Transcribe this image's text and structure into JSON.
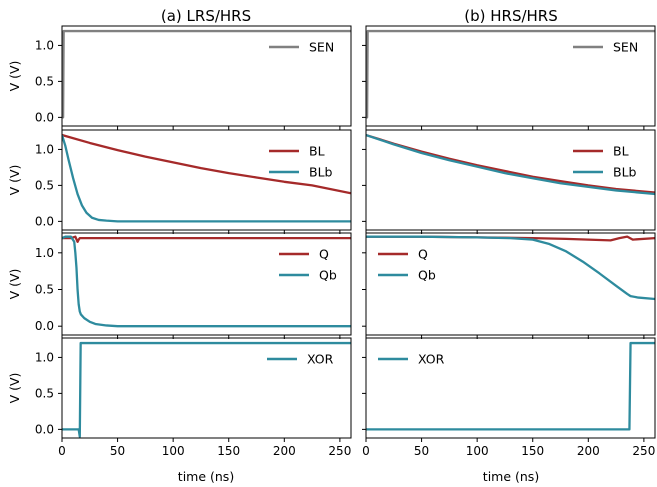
{
  "colors": {
    "sen": "#808080",
    "red": "#a52a2a",
    "teal": "#2e8b9e",
    "axis": "#000000"
  },
  "columns": [
    {
      "title": "(a) LRS/HRS",
      "xlabel": "time (ns)"
    },
    {
      "title": "(b) HRS/HRS",
      "xlabel": "time (ns)"
    }
  ],
  "ylabel": "V (V)",
  "xticks": [
    "0",
    "50",
    "100",
    "150",
    "200",
    "250"
  ],
  "yticks": [
    "0.0",
    "0.5",
    "1.0"
  ],
  "chart_data": {
    "type": "line",
    "xlim": [
      0,
      260
    ],
    "ylim": [
      -0.12,
      1.27
    ],
    "panels": [
      {
        "col": 0,
        "row": 0,
        "series": [
          {
            "name": "SEN",
            "color_key": "sen",
            "x": [
              0,
              1,
              1.5,
              260
            ],
            "y": [
              0,
              0,
              1.2,
              1.2
            ]
          }
        ]
      },
      {
        "col": 0,
        "row": 1,
        "series": [
          {
            "name": "BL",
            "color_key": "red",
            "x": [
              0,
              25,
              50,
              75,
              100,
              125,
              150,
              175,
              200,
              225,
              260
            ],
            "y": [
              1.2,
              1.09,
              0.99,
              0.9,
              0.82,
              0.74,
              0.67,
              0.61,
              0.55,
              0.5,
              0.39
            ]
          },
          {
            "name": "BLb",
            "color_key": "teal",
            "x": [
              0,
              3,
              6,
              10,
              14,
              18,
              22,
              27,
              33,
              40,
              50,
              60,
              80,
              260
            ],
            "y": [
              1.2,
              1.05,
              0.85,
              0.6,
              0.38,
              0.22,
              0.12,
              0.05,
              0.02,
              0.01,
              0.0,
              0.0,
              0.0,
              0.0
            ]
          }
        ]
      },
      {
        "col": 0,
        "row": 2,
        "series": [
          {
            "name": "Q",
            "color_key": "red",
            "x": [
              0,
              8,
              12,
              14,
              15,
              16,
              18,
              260
            ],
            "y": [
              1.2,
              1.2,
              1.22,
              1.15,
              1.18,
              1.2,
              1.2,
              1.2
            ]
          },
          {
            "name": "Qb",
            "color_key": "teal",
            "x": [
              0,
              3,
              8,
              11,
              12,
              13,
              14,
              15,
              16,
              17,
              20,
              25,
              30,
              40,
              50,
              70,
              260
            ],
            "y": [
              1.2,
              1.22,
              1.22,
              1.15,
              1.0,
              0.8,
              0.5,
              0.3,
              0.2,
              0.16,
              0.11,
              0.06,
              0.03,
              0.01,
              0.0,
              0.0,
              0.0
            ]
          }
        ]
      },
      {
        "col": 0,
        "row": 3,
        "series": [
          {
            "name": "XOR",
            "color_key": "teal",
            "x": [
              0,
              15,
              16,
              16.8,
              260
            ],
            "y": [
              0,
              0,
              -0.1,
              1.2,
              1.2
            ]
          }
        ]
      },
      {
        "col": 1,
        "row": 0,
        "series": [
          {
            "name": "SEN",
            "color_key": "sen",
            "x": [
              0,
              1,
              1.5,
              260
            ],
            "y": [
              0,
              0,
              1.2,
              1.2
            ]
          }
        ]
      },
      {
        "col": 1,
        "row": 1,
        "series": [
          {
            "name": "BL",
            "color_key": "red",
            "x": [
              0,
              25,
              50,
              75,
              100,
              125,
              150,
              175,
              200,
              225,
              260
            ],
            "y": [
              1.2,
              1.08,
              0.97,
              0.87,
              0.78,
              0.7,
              0.62,
              0.56,
              0.5,
              0.45,
              0.4
            ]
          },
          {
            "name": "BLb",
            "color_key": "teal",
            "x": [
              0,
              25,
              50,
              75,
              100,
              125,
              150,
              175,
              200,
              225,
              260
            ],
            "y": [
              1.2,
              1.07,
              0.95,
              0.85,
              0.76,
              0.67,
              0.6,
              0.53,
              0.48,
              0.43,
              0.38
            ]
          }
        ]
      },
      {
        "col": 1,
        "row": 2,
        "series": [
          {
            "name": "Q",
            "color_key": "red",
            "x": [
              0,
              50,
              100,
              150,
              180,
              200,
              220,
              228,
              235,
              240,
              260
            ],
            "y": [
              1.22,
              1.22,
              1.21,
              1.2,
              1.19,
              1.18,
              1.17,
              1.2,
              1.22,
              1.18,
              1.2
            ]
          },
          {
            "name": "Qb",
            "color_key": "teal",
            "x": [
              0,
              50,
              100,
              130,
              150,
              165,
              180,
              195,
              210,
              225,
              235,
              238,
              245,
              260
            ],
            "y": [
              1.22,
              1.22,
              1.21,
              1.2,
              1.18,
              1.12,
              1.02,
              0.88,
              0.72,
              0.55,
              0.44,
              0.41,
              0.39,
              0.37
            ]
          }
        ]
      },
      {
        "col": 1,
        "row": 3,
        "series": [
          {
            "name": "XOR",
            "color_key": "teal",
            "x": [
              0,
              237,
              238,
              260
            ],
            "y": [
              0,
              0,
              1.2,
              1.2
            ]
          }
        ]
      }
    ]
  }
}
